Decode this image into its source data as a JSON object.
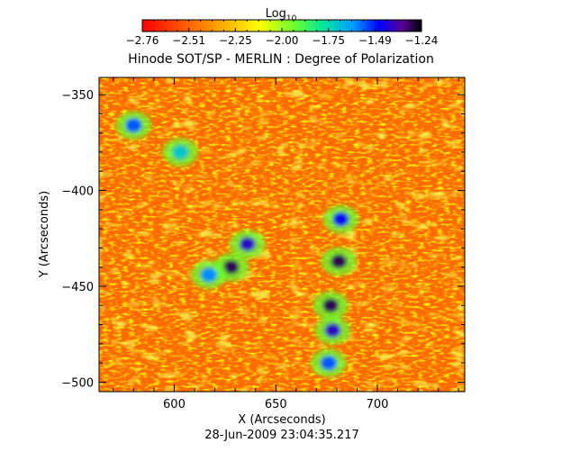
{
  "chart_data": {
    "type": "heatmap",
    "title": "Hinode SOT/SP - MERLIN : Degree of Polarization",
    "colorbar": {
      "label_base": "Log",
      "label_sub": "10",
      "ticks": [
        "-2.76",
        "-2.51",
        "-2.25",
        "-2.00",
        "-1.75",
        "-1.49",
        "-1.24"
      ],
      "range": [
        -2.76,
        -1.24
      ]
    },
    "xlabel": "X (Arcseconds)",
    "ylabel": "Y (Arcseconds)",
    "xlim": [
      563,
      743
    ],
    "ylim": [
      -505,
      -341
    ],
    "xticks": [
      600,
      650,
      700
    ],
    "yticks": [
      -350,
      -400,
      -450,
      -500
    ],
    "annotation": "28-Jun-2009 23:04:35.217",
    "strong_polarization_regions": [
      {
        "x": 636,
        "y": -428,
        "value": -1.4
      },
      {
        "x": 628,
        "y": -440,
        "value": -1.3
      },
      {
        "x": 617,
        "y": -444,
        "value": -1.6
      },
      {
        "x": 682,
        "y": -415,
        "value": -1.45
      },
      {
        "x": 681,
        "y": -437,
        "value": -1.3
      },
      {
        "x": 677,
        "y": -460,
        "value": -1.3
      },
      {
        "x": 678,
        "y": -473,
        "value": -1.4
      },
      {
        "x": 676,
        "y": -490,
        "value": -1.55
      },
      {
        "x": 580,
        "y": -366,
        "value": -1.55
      },
      {
        "x": 603,
        "y": -380,
        "value": -1.7
      }
    ]
  }
}
